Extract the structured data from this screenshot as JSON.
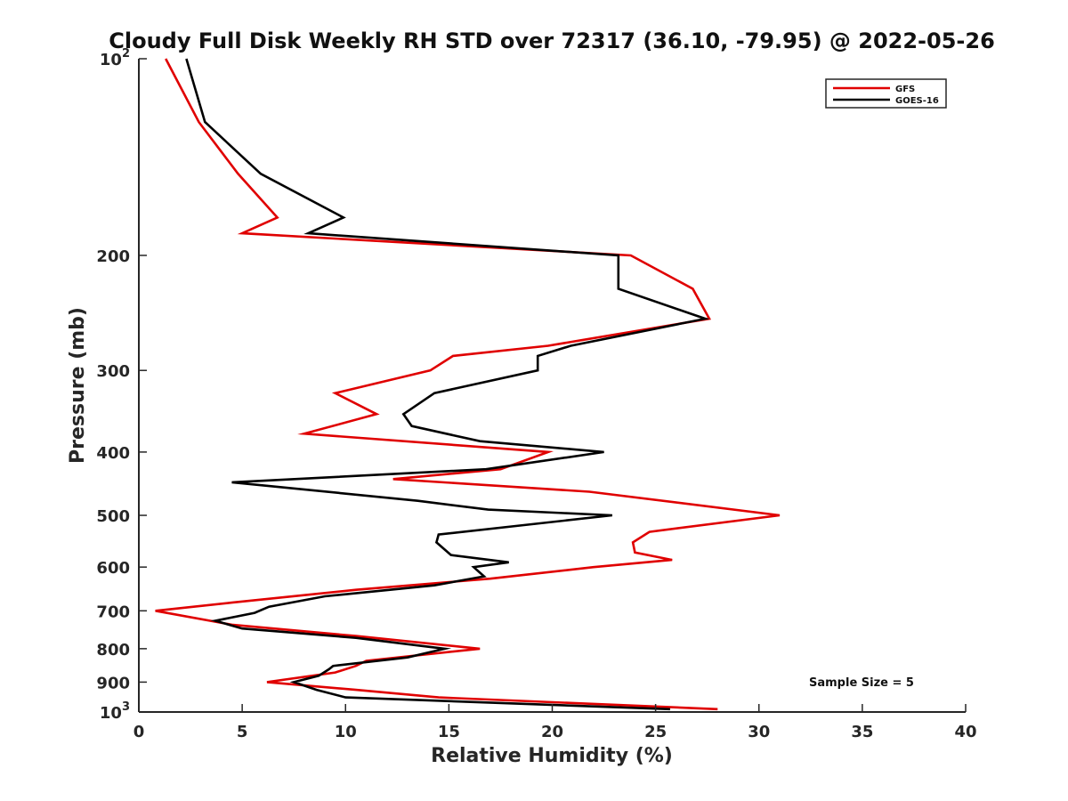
{
  "chart_data": {
    "type": "line",
    "title": "Cloudy Full Disk Weekly RH STD over 72317 (36.10, -79.95) @ 2022-05-26",
    "xlabel": "Relative Humidity (%)",
    "ylabel": "Pressure (mb)",
    "xlim": [
      0,
      40
    ],
    "ylim": [
      100,
      1000
    ],
    "y_scale": "log",
    "y_reversed": true,
    "x_ticks": [
      0,
      5,
      10,
      15,
      20,
      25,
      30,
      35,
      40
    ],
    "x_tick_labels": [
      "0",
      "5",
      "10",
      "15",
      "20",
      "25",
      "30",
      "35",
      "40"
    ],
    "y_ticks": [
      100,
      200,
      300,
      400,
      500,
      600,
      700,
      800,
      900,
      1000
    ],
    "y_tick_labels": [
      {
        "base": "10",
        "exp": "2"
      },
      {
        "base": "200",
        "exp": ""
      },
      {
        "base": "300",
        "exp": ""
      },
      {
        "base": "400",
        "exp": ""
      },
      {
        "base": "500",
        "exp": ""
      },
      {
        "base": "600",
        "exp": ""
      },
      {
        "base": "700",
        "exp": ""
      },
      {
        "base": "800",
        "exp": ""
      },
      {
        "base": "900",
        "exp": ""
      },
      {
        "base": "10",
        "exp": "3"
      }
    ],
    "grid": false,
    "legend_position": "top-right",
    "annotation": "Sample Size = 5",
    "series": [
      {
        "name": "GFS",
        "color": "#e00000",
        "points": [
          [
            1.3,
            100
          ],
          [
            2.9,
            125
          ],
          [
            4.8,
            150
          ],
          [
            6.7,
            175
          ],
          [
            5.0,
            185
          ],
          [
            23.8,
            200
          ],
          [
            26.8,
            225
          ],
          [
            27.6,
            250
          ],
          [
            19.8,
            275
          ],
          [
            15.2,
            285
          ],
          [
            14.1,
            300
          ],
          [
            9.5,
            325
          ],
          [
            11.5,
            350
          ],
          [
            8.0,
            375
          ],
          [
            19.8,
            400
          ],
          [
            17.5,
            425
          ],
          [
            12.3,
            440
          ],
          [
            21.8,
            460
          ],
          [
            31.0,
            500
          ],
          [
            24.7,
            530
          ],
          [
            23.9,
            550
          ],
          [
            24.0,
            570
          ],
          [
            25.8,
            585
          ],
          [
            22.0,
            600
          ],
          [
            17.0,
            625
          ],
          [
            10.5,
            650
          ],
          [
            4.5,
            680
          ],
          [
            0.8,
            700
          ],
          [
            4.5,
            735
          ],
          [
            10.5,
            765
          ],
          [
            16.5,
            800
          ],
          [
            11.0,
            835
          ],
          [
            10.5,
            850
          ],
          [
            9.5,
            870
          ],
          [
            6.2,
            900
          ],
          [
            10.5,
            925
          ],
          [
            14.5,
            950
          ],
          [
            28.0,
            990
          ]
        ]
      },
      {
        "name": "GOES-16",
        "color": "#000000",
        "points": [
          [
            2.3,
            100
          ],
          [
            3.2,
            125
          ],
          [
            5.9,
            150
          ],
          [
            9.9,
            175
          ],
          [
            8.2,
            185
          ],
          [
            23.2,
            200
          ],
          [
            23.2,
            225
          ],
          [
            27.4,
            250
          ],
          [
            20.9,
            275
          ],
          [
            19.3,
            285
          ],
          [
            19.3,
            300
          ],
          [
            14.3,
            325
          ],
          [
            12.8,
            350
          ],
          [
            13.2,
            365
          ],
          [
            16.5,
            385
          ],
          [
            22.5,
            400
          ],
          [
            16.8,
            425
          ],
          [
            4.5,
            445
          ],
          [
            13.5,
            475
          ],
          [
            16.9,
            490
          ],
          [
            22.9,
            500
          ],
          [
            14.5,
            535
          ],
          [
            14.4,
            550
          ],
          [
            15.1,
            575
          ],
          [
            17.9,
            590
          ],
          [
            16.2,
            600
          ],
          [
            16.7,
            620
          ],
          [
            14.3,
            640
          ],
          [
            9.0,
            665
          ],
          [
            6.3,
            690
          ],
          [
            5.6,
            705
          ],
          [
            3.7,
            725
          ],
          [
            5.0,
            745
          ],
          [
            10.5,
            770
          ],
          [
            14.8,
            800
          ],
          [
            13.0,
            825
          ],
          [
            9.4,
            850
          ],
          [
            9.2,
            860
          ],
          [
            8.7,
            880
          ],
          [
            7.5,
            900
          ],
          [
            8.6,
            925
          ],
          [
            10.0,
            950
          ],
          [
            25.7,
            990
          ]
        ]
      }
    ]
  }
}
